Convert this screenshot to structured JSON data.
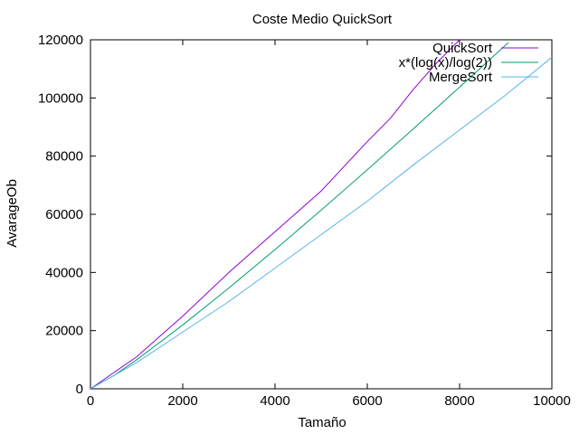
{
  "chart_data": {
    "type": "line",
    "title": "Coste Medio QuickSort",
    "xlabel": "Tamaño",
    "ylabel": "AvarageOb",
    "xlim": [
      0,
      10000
    ],
    "ylim": [
      0,
      120000
    ],
    "xticks": [
      0,
      2000,
      4000,
      6000,
      8000,
      10000
    ],
    "yticks": [
      0,
      20000,
      40000,
      60000,
      80000,
      100000,
      120000
    ],
    "grid": false,
    "legend_position": "top-right",
    "series": [
      {
        "name": "QuickSort",
        "color": "#9400d3",
        "x": [
          0,
          1000,
          2000,
          3000,
          4000,
          5000,
          6000,
          6500,
          7000,
          7500,
          8000
        ],
        "y": [
          0,
          11000,
          25000,
          40000,
          54000,
          68000,
          85000,
          93000,
          103000,
          112000,
          120000
        ]
      },
      {
        "name": "x*(log(x)/log(2))",
        "color": "#009e73",
        "x": [
          0,
          500,
          1000,
          2000,
          3000,
          4000,
          5000,
          6000,
          7000,
          8000,
          9000,
          9060
        ],
        "y": [
          0,
          4483,
          9966,
          21932,
          34652,
          47863,
          61439,
          75304,
          89411,
          103726,
          118221,
          119100
        ]
      },
      {
        "name": "MergeSort",
        "color": "#56b4e9",
        "x": [
          0,
          1000,
          2000,
          3000,
          4000,
          5000,
          6000,
          7000,
          8000,
          9000,
          10000
        ],
        "y": [
          0,
          9000,
          19500,
          30000,
          41500,
          53000,
          64500,
          77000,
          89000,
          101000,
          114000
        ]
      }
    ]
  }
}
